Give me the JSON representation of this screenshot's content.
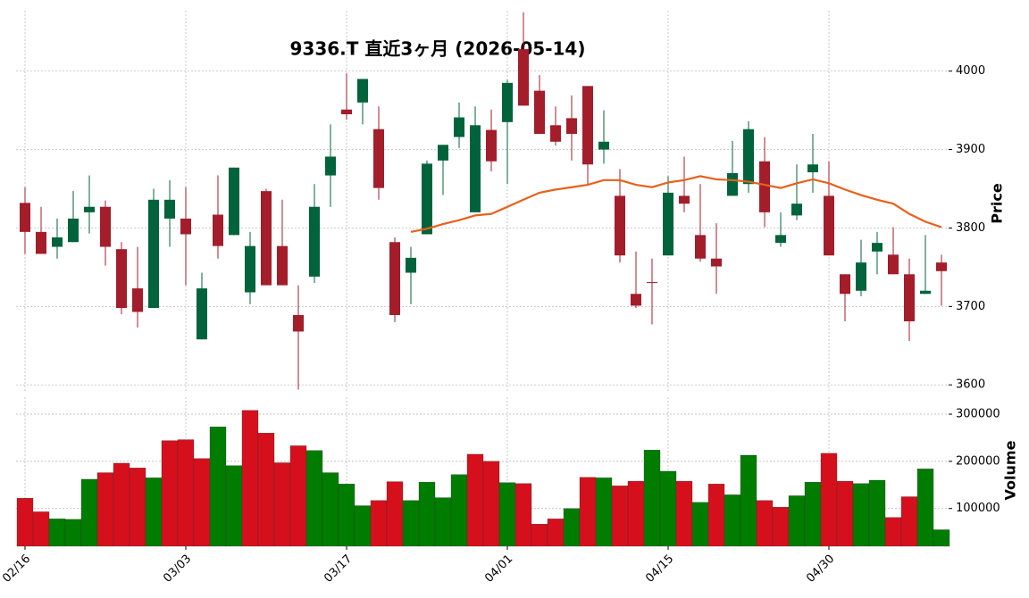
{
  "chart_data": {
    "type": "candlestick",
    "title": "9336.T 直近3ヶ月 (2026-05-14)",
    "y_label": "Price",
    "categories": [
      "02/16",
      null,
      null,
      null,
      null,
      null,
      null,
      null,
      null,
      null,
      "03/03",
      null,
      null,
      null,
      null,
      null,
      null,
      null,
      null,
      null,
      "03/17",
      null,
      null,
      null,
      null,
      null,
      null,
      null,
      null,
      null,
      "04/01",
      null,
      null,
      null,
      null,
      null,
      null,
      null,
      null,
      null,
      "04/15",
      null,
      null,
      null,
      null,
      null,
      null,
      null,
      null,
      null,
      "04/30",
      null,
      null,
      null,
      null,
      null,
      null,
      null
    ],
    "open": [
      3832,
      3795,
      3776,
      3782,
      3820,
      3827,
      3773,
      3723,
      3698,
      3812,
      3812,
      3658,
      3817,
      3791,
      3718,
      3847,
      3777,
      3689,
      3738,
      3867,
      3951,
      3960,
      3926,
      3782,
      3743,
      3792,
      3886,
      3916,
      3820,
      3925,
      3935,
      4028,
      3975,
      3931,
      3940,
      3981,
      3900,
      3841,
      3716,
      3731,
      3765,
      3841,
      3791,
      3761,
      3841,
      3856,
      3885,
      3781,
      3816,
      3871,
      3841,
      3741,
      3720,
      3770,
      3766,
      3741,
      3716,
      3756
    ],
    "high": [
      3852,
      3827,
      3812,
      3847,
      3867,
      3835,
      3782,
      3776,
      3850,
      3861,
      3852,
      3743,
      3867,
      3877,
      3795,
      3850,
      3836,
      3727,
      3856,
      3932,
      3997,
      3990,
      3955,
      3788,
      3776,
      3886,
      3906,
      3960,
      3955,
      3951,
      3989,
      4075,
      3995,
      3955,
      3969,
      3981,
      3950,
      3875,
      3770,
      3761,
      3866,
      3891,
      3856,
      3806,
      3911,
      3936,
      3916,
      3820,
      3881,
      3920,
      3885,
      3741,
      3785,
      3795,
      3801,
      3761,
      3791,
      3766
    ],
    "low": [
      3767,
      3767,
      3761,
      3782,
      3793,
      3752,
      3690,
      3673,
      3698,
      3776,
      3727,
      3658,
      3761,
      3791,
      3703,
      3727,
      3727,
      3594,
      3730,
      3827,
      3938,
      3932,
      3836,
      3680,
      3703,
      3792,
      3842,
      3902,
      3820,
      3872,
      3856,
      3956,
      3920,
      3905,
      3886,
      3856,
      3882,
      3756,
      3698,
      3677,
      3765,
      3820,
      3757,
      3716,
      3841,
      3845,
      3801,
      3776,
      3810,
      3845,
      3765,
      3681,
      3713,
      3741,
      3741,
      3656,
      3716,
      3701
    ],
    "close": [
      3795,
      3767,
      3788,
      3812,
      3827,
      3776,
      3698,
      3693,
      3836,
      3836,
      3792,
      3723,
      3777,
      3877,
      3777,
      3727,
      3727,
      3668,
      3827,
      3891,
      3945,
      3990,
      3851,
      3689,
      3762,
      3882,
      3906,
      3941,
      3931,
      3885,
      3985,
      3956,
      3920,
      3910,
      3920,
      3881,
      3910,
      3765,
      3701,
      3730,
      3845,
      3831,
      3761,
      3751,
      3870,
      3926,
      3820,
      3791,
      3831,
      3881,
      3765,
      3716,
      3756,
      3781,
      3741,
      3681,
      3720,
      3745
    ],
    "up_color": "#00633b",
    "down_color": "#a31d2b",
    "ylim": [
      3590,
      4077
    ],
    "yticks": [
      3600,
      3700,
      3800,
      3900,
      4000
    ],
    "grid": true,
    "moving_average": {
      "color": "#e8601c",
      "values": [
        null,
        null,
        null,
        null,
        null,
        null,
        null,
        null,
        null,
        null,
        null,
        null,
        null,
        null,
        null,
        null,
        null,
        null,
        null,
        null,
        null,
        null,
        null,
        null,
        3795,
        3799,
        3805,
        3810,
        3816,
        3818,
        3827,
        3836,
        3845,
        3849,
        3852,
        3855,
        3861,
        3861,
        3855,
        3852,
        3858,
        3861,
        3866,
        3862,
        3861,
        3859,
        3855,
        3851,
        3857,
        3862,
        3857,
        3849,
        3842,
        3836,
        3831,
        3818,
        3808,
        3801
      ]
    },
    "volume": {
      "y_label": "Volume",
      "ylim": [
        20000,
        336000
      ],
      "yticks": [
        100000,
        200000,
        300000
      ],
      "values": [
        122000,
        93000,
        78000,
        77000,
        162000,
        176000,
        196000,
        186000,
        165000,
        244000,
        246000,
        206000,
        273000,
        191000,
        308000,
        260000,
        197000,
        233000,
        223000,
        176000,
        152000,
        106000,
        117000,
        157000,
        117000,
        156000,
        123000,
        172000,
        215000,
        200000,
        155000,
        153000,
        67000,
        78000,
        100000,
        166000,
        165000,
        148000,
        158000,
        224000,
        179000,
        158000,
        113000,
        152000,
        129000,
        213000,
        117000,
        103000,
        127000,
        156000,
        217000,
        158000,
        153000,
        160000,
        81000,
        125000,
        184000,
        55000
      ],
      "colors": [
        "#d5101c",
        "#d5101c",
        "#007c00",
        "#007c00",
        "#007c00",
        "#d5101c",
        "#d5101c",
        "#d5101c",
        "#007c00",
        "#d5101c",
        "#d5101c",
        "#d5101c",
        "#007c00",
        "#007c00",
        "#d5101c",
        "#d5101c",
        "#d5101c",
        "#d5101c",
        "#007c00",
        "#007c00",
        "#007c00",
        "#007c00",
        "#d5101c",
        "#d5101c",
        "#007c00",
        "#007c00",
        "#007c00",
        "#007c00",
        "#d5101c",
        "#d5101c",
        "#007c00",
        "#d5101c",
        "#d5101c",
        "#d5101c",
        "#007c00",
        "#d5101c",
        "#007c00",
        "#d5101c",
        "#d5101c",
        "#007c00",
        "#007c00",
        "#d5101c",
        "#007c00",
        "#d5101c",
        "#007c00",
        "#007c00",
        "#d5101c",
        "#d5101c",
        "#007c00",
        "#007c00",
        "#d5101c",
        "#d5101c",
        "#007c00",
        "#007c00",
        "#d5101c",
        "#d5101c",
        "#007c00",
        "#007c00"
      ]
    }
  }
}
